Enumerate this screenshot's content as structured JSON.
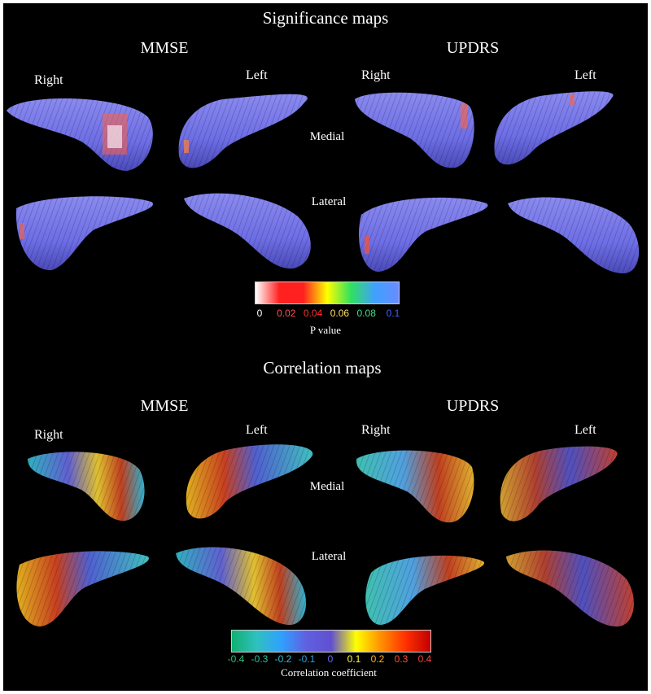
{
  "significance": {
    "title": "Significance maps",
    "left_group": "MMSE",
    "right_group": "UPDRS",
    "labels": {
      "right": "Right",
      "left": "Left",
      "medial": "Medial",
      "lateral": "Lateral"
    },
    "colorbar": {
      "title": "P value",
      "ticks": [
        {
          "label": "0",
          "color": "#ffffff"
        },
        {
          "label": "0.02",
          "color": "#ff5050"
        },
        {
          "label": "0.04",
          "color": "#ff3030"
        },
        {
          "label": "0.06",
          "color": "#ffe060"
        },
        {
          "label": "0.08",
          "color": "#40e080"
        },
        {
          "label": "0.1",
          "color": "#4060ff"
        }
      ],
      "gradient": [
        "#ffffff",
        "#ff2020",
        "#ff2020",
        "#ffff00",
        "#30e060",
        "#40a0ff",
        "#6a8cff"
      ]
    }
  },
  "correlation": {
    "title": "Correlation maps",
    "left_group": "MMSE",
    "right_group": "UPDRS",
    "labels": {
      "right": "Right",
      "left": "Left",
      "medial": "Medial",
      "lateral": "Lateral"
    },
    "colorbar": {
      "title": "Correlation coefficient",
      "ticks": [
        {
          "label": "-0.4",
          "color": "#30c080"
        },
        {
          "label": "-0.3",
          "color": "#30c0a0"
        },
        {
          "label": "-0.2",
          "color": "#30c0d0"
        },
        {
          "label": "-0.1",
          "color": "#30a0e0"
        },
        {
          "label": "0",
          "color": "#6a6aff"
        },
        {
          "label": "0.1",
          "color": "#ffff40"
        },
        {
          "label": "0.2",
          "color": "#ffb030"
        },
        {
          "label": "0.3",
          "color": "#ff5030"
        },
        {
          "label": "0.4",
          "color": "#ff4040"
        }
      ],
      "gradient": [
        "#10b070",
        "#30c0c0",
        "#30a0ff",
        "#6060e0",
        "#6050d0",
        "#ffff00",
        "#ff9000",
        "#ff3000",
        "#c00000"
      ]
    }
  },
  "colors": {
    "surface": "#6e6ee6",
    "surface_shade": "#5454c0"
  }
}
